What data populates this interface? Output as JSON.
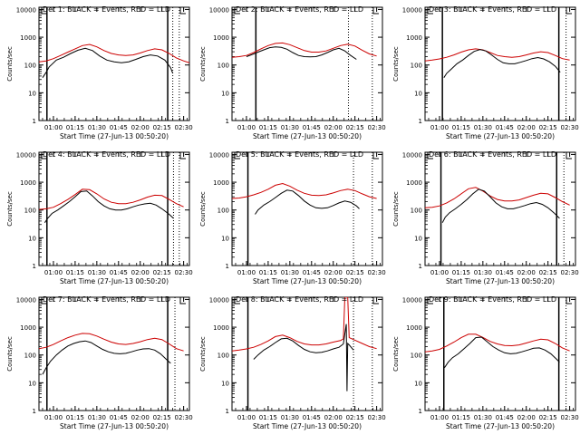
{
  "chart_data": {
    "type": "line",
    "ylabel": "Counts/sec",
    "xlabel": "Start Time (27-Jun-13 00:50:20)",
    "x_ticks": [
      "01:00",
      "01:15",
      "01:30",
      "01:45",
      "02:00",
      "02:15",
      "02:30"
    ],
    "y_ticks": [
      "1",
      "10",
      "100",
      "1000",
      "10000"
    ],
    "y_scale": "log",
    "ylim": [
      1,
      12000
    ],
    "xlim_minutes_since_0050": [
      0,
      104
    ],
    "colors": {
      "events": "#000000",
      "lld": "#cc0000"
    },
    "panels": [
      {
        "title": "Det 1: BLACK = Events, RED = LLD",
        "events": {
          "x": [
            2.5,
            5,
            7,
            12,
            17,
            22,
            27,
            32,
            37,
            42,
            47,
            52,
            57,
            62,
            67,
            72,
            77,
            82,
            87,
            91,
            92.5
          ],
          "y": [
            35,
            55,
            85,
            150,
            190,
            260,
            340,
            400,
            330,
            210,
            150,
            130,
            120,
            130,
            160,
            200,
            230,
            210,
            150,
            80,
            50
          ]
        },
        "lld": {
          "x": [
            0,
            5,
            10,
            15,
            20,
            25,
            30,
            35,
            40,
            45,
            50,
            55,
            60,
            65,
            70,
            75,
            80,
            85,
            90,
            95,
            100,
            104
          ],
          "y": [
            130,
            140,
            170,
            220,
            290,
            380,
            500,
            550,
            450,
            330,
            260,
            230,
            220,
            230,
            270,
            330,
            380,
            350,
            260,
            180,
            140,
            120
          ]
        },
        "bars": [
          5.5,
          89
        ],
        "dotted": [
          92.5,
          97
        ]
      },
      {
        "title": "Det 2: BLACK = Events, RED = LLD",
        "events": {
          "x": [
            10,
            14,
            18,
            22,
            26,
            30,
            34,
            38,
            42,
            46,
            50,
            54,
            58,
            62,
            66,
            70,
            74,
            78,
            82,
            86
          ],
          "y": [
            200,
            240,
            290,
            350,
            420,
            450,
            430,
            370,
            280,
            220,
            200,
            195,
            200,
            230,
            280,
            350,
            400,
            320,
            220,
            160
          ]
        },
        "lld": {
          "x": [
            0,
            5,
            10,
            15,
            20,
            25,
            30,
            35,
            40,
            45,
            50,
            55,
            60,
            65,
            70,
            75,
            80,
            85,
            90,
            95,
            100
          ],
          "y": [
            190,
            200,
            220,
            280,
            380,
            500,
            600,
            620,
            540,
            420,
            330,
            290,
            290,
            320,
            400,
            500,
            560,
            480,
            340,
            250,
            210
          ]
        },
        "bars": [
          16.5
        ],
        "dotted": [
          80.5,
          97
        ]
      },
      {
        "title": "Det 3: BLACK = Events, RED = LLD",
        "events": {
          "x": [
            13,
            15,
            18,
            22,
            26,
            30,
            34,
            38,
            42,
            46,
            50,
            54,
            58,
            62,
            66,
            70,
            74,
            78,
            82,
            86,
            90,
            93.5
          ],
          "y": [
            35,
            50,
            70,
            110,
            150,
            220,
            310,
            360,
            320,
            230,
            160,
            120,
            110,
            110,
            125,
            145,
            170,
            185,
            165,
            130,
            90,
            55
          ]
        },
        "lld": {
          "x": [
            0,
            5,
            10,
            15,
            20,
            25,
            30,
            35,
            40,
            45,
            50,
            55,
            60,
            65,
            70,
            75,
            80,
            85,
            90,
            95,
            100
          ],
          "y": [
            140,
            150,
            165,
            190,
            230,
            290,
            350,
            380,
            350,
            280,
            220,
            200,
            190,
            200,
            230,
            270,
            300,
            280,
            220,
            170,
            150
          ]
        },
        "bars": [
          12,
          92.5
        ],
        "dotted": [
          97.5
        ]
      },
      {
        "title": "Det 4: BLACK = Events, RED = LLD",
        "events": {
          "x": [
            4,
            6,
            9,
            13,
            17,
            21,
            25,
            29,
            33,
            37,
            41,
            45,
            49,
            53,
            57,
            61,
            65,
            69,
            73,
            77,
            81,
            85,
            90,
            93
          ],
          "y": [
            35,
            50,
            75,
            100,
            140,
            200,
            300,
            460,
            480,
            320,
            200,
            140,
            110,
            100,
            100,
            110,
            130,
            150,
            165,
            175,
            150,
            110,
            70,
            50
          ]
        },
        "lld": {
          "x": [
            0,
            5,
            10,
            15,
            20,
            25,
            30,
            35,
            40,
            45,
            50,
            55,
            60,
            65,
            70,
            75,
            80,
            85,
            90,
            95,
            100
          ],
          "y": [
            105,
            110,
            125,
            170,
            240,
            360,
            560,
            540,
            380,
            250,
            190,
            170,
            170,
            190,
            230,
            290,
            340,
            330,
            240,
            170,
            130
          ]
        },
        "bars": [
          5.5,
          89
        ],
        "dotted": [
          93,
          97
        ]
      },
      {
        "title": "Det 5: BLACK = Events, RED = LLD",
        "events": {
          "x": [
            16,
            18,
            22,
            26,
            30,
            34,
            38,
            42,
            46,
            50,
            54,
            58,
            62,
            66,
            70,
            74,
            78,
            82,
            86,
            88
          ],
          "y": [
            70,
            100,
            150,
            200,
            280,
            400,
            520,
            480,
            330,
            210,
            150,
            120,
            115,
            120,
            145,
            180,
            210,
            190,
            140,
            110
          ]
        },
        "lld": {
          "x": [
            0,
            5,
            10,
            15,
            20,
            25,
            30,
            35,
            40,
            45,
            50,
            55,
            60,
            65,
            70,
            75,
            80,
            85,
            90,
            95,
            100
          ],
          "y": [
            260,
            270,
            300,
            350,
            430,
            560,
            780,
            900,
            720,
            520,
            400,
            340,
            330,
            350,
            410,
            500,
            560,
            500,
            380,
            300,
            260
          ]
        },
        "bars": [
          11
        ],
        "dotted": [
          84,
          97
        ]
      },
      {
        "title": "Det 6: BLACK = Events, RED = LLD",
        "events": {
          "x": [
            12,
            14,
            17,
            21,
            25,
            29,
            33,
            37,
            41,
            45,
            49,
            53,
            57,
            61,
            65,
            69,
            73,
            77,
            81,
            85,
            89,
            93
          ],
          "y": [
            35,
            55,
            80,
            110,
            160,
            240,
            380,
            560,
            480,
            300,
            180,
            130,
            110,
            110,
            125,
            145,
            170,
            185,
            160,
            120,
            80,
            50
          ]
        },
        "lld": {
          "x": [
            0,
            5,
            10,
            15,
            20,
            25,
            30,
            35,
            40,
            45,
            50,
            55,
            60,
            65,
            70,
            75,
            80,
            85,
            90,
            95,
            100
          ],
          "y": [
            120,
            125,
            140,
            180,
            250,
            380,
            580,
            650,
            480,
            320,
            240,
            210,
            210,
            230,
            280,
            340,
            400,
            380,
            280,
            200,
            150
          ]
        },
        "bars": [
          11,
          91
        ],
        "dotted": [
          96
        ]
      },
      {
        "title": "Det 7: BLACK = Events, RED = LLD",
        "events": {
          "x": [
            2.5,
            5,
            8,
            12,
            16,
            20,
            24,
            28,
            32,
            36,
            40,
            44,
            48,
            52,
            56,
            60,
            64,
            68,
            72,
            76,
            80,
            84,
            88,
            91
          ],
          "y": [
            20,
            35,
            60,
            100,
            150,
            210,
            260,
            300,
            320,
            280,
            210,
            160,
            130,
            115,
            110,
            115,
            130,
            150,
            165,
            170,
            150,
            110,
            70,
            50
          ]
        },
        "lld": {
          "x": [
            0,
            5,
            10,
            15,
            20,
            25,
            30,
            35,
            40,
            45,
            50,
            55,
            60,
            65,
            70,
            75,
            80,
            85,
            90,
            95,
            100
          ],
          "y": [
            170,
            190,
            240,
            320,
            420,
            520,
            600,
            580,
            480,
            370,
            290,
            250,
            240,
            260,
            300,
            360,
            400,
            360,
            250,
            170,
            140
          ]
        },
        "bars": [
          5.5,
          89
        ],
        "dotted": [
          94
        ]
      },
      {
        "title": "Det 8: BLACK = Events, RED = LLD",
        "events": {
          "x": [
            15,
            18,
            22,
            26,
            30,
            34,
            38,
            42,
            46,
            50,
            54,
            58,
            62,
            66,
            70,
            74,
            77,
            79,
            79.5,
            80,
            81,
            84
          ],
          "y": [
            70,
            100,
            150,
            200,
            280,
            380,
            400,
            320,
            220,
            160,
            130,
            120,
            125,
            140,
            165,
            190,
            250,
            1300,
            5,
            260,
            230,
            150
          ]
        },
        "lld": {
          "x": [
            0,
            5,
            10,
            15,
            20,
            25,
            30,
            35,
            40,
            45,
            50,
            55,
            60,
            65,
            70,
            75,
            77,
            78,
            80,
            81,
            84,
            90,
            95,
            100
          ],
          "y": [
            140,
            150,
            165,
            190,
            240,
            320,
            460,
            520,
            420,
            310,
            250,
            230,
            230,
            250,
            290,
            330,
            380,
            12000,
            12000,
            420,
            360,
            260,
            200,
            170
          ]
        },
        "bars": [
          11
        ],
        "dotted": [
          84,
          97
        ]
      },
      {
        "title": "Det 9: BLACK = Events, RED = LLD",
        "events": {
          "x": [
            13.5,
            16,
            19,
            23,
            27,
            31,
            35,
            39,
            43,
            47,
            51,
            55,
            59,
            63,
            67,
            71,
            75,
            79,
            83,
            87,
            91,
            93
          ],
          "y": [
            35,
            55,
            80,
            110,
            170,
            260,
            420,
            440,
            300,
            200,
            150,
            120,
            110,
            115,
            130,
            150,
            175,
            180,
            150,
            110,
            70,
            55
          ]
        },
        "lld": {
          "x": [
            0,
            5,
            10,
            15,
            20,
            25,
            30,
            35,
            40,
            45,
            50,
            55,
            60,
            65,
            70,
            75,
            80,
            85,
            90,
            95,
            100
          ],
          "y": [
            130,
            140,
            160,
            210,
            290,
            420,
            560,
            560,
            430,
            310,
            250,
            220,
            215,
            230,
            270,
            320,
            370,
            350,
            260,
            180,
            140
          ]
        },
        "bars": [
          13,
          92.5
        ],
        "dotted": [
          97.5
        ]
      }
    ]
  }
}
